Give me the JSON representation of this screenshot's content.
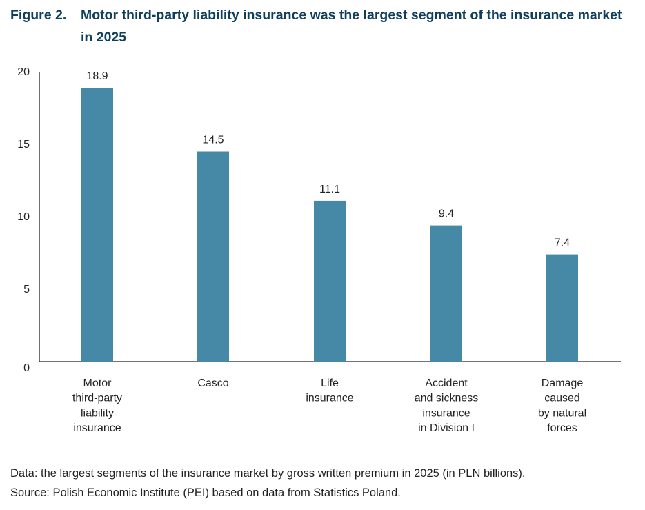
{
  "figure": {
    "number_label": "Figure 2.",
    "title": "Motor third-party liability insurance was the largest segment of the insurance market in 2025"
  },
  "notes": {
    "data_note": "Data: the largest segments of the insurance market by gross written premium in 2025 (in PLN billions).",
    "source_note": "Source: Polish Economic Institute (PEI) based on data from Statistics Poland."
  },
  "colors": {
    "bar": "#4589a6",
    "title": "#0f3f5c",
    "axis": "#222222"
  },
  "chart_data": {
    "type": "bar",
    "title": "Motor third-party liability insurance was the largest segment of the insurance market in 2025",
    "xlabel": "",
    "ylabel": "",
    "unit": "PLN billions",
    "ylim": [
      0,
      20
    ],
    "yticks": [
      0,
      5,
      10,
      15,
      20
    ],
    "grid": false,
    "legend": "none",
    "categories": [
      [
        "Motor",
        "third-party",
        "liability",
        "insurance"
      ],
      [
        "Casco"
      ],
      [
        "Life",
        "insurance"
      ],
      [
        "Accident",
        "and sickness",
        "insurance",
        "in Division I"
      ],
      [
        "Damage",
        "caused",
        "by natural",
        "forces"
      ]
    ],
    "values": [
      18.9,
      14.5,
      11.1,
      9.4,
      7.4
    ],
    "value_labels": [
      "18.9",
      "14.5",
      "11.1",
      "9.4",
      "7.4"
    ]
  }
}
